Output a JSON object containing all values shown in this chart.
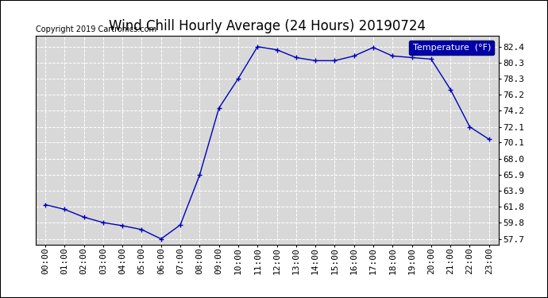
{
  "title": "Wind Chill Hourly Average (24 Hours) 20190724",
  "copyright": "Copyright 2019 Cartronics.com",
  "legend_label": "Temperature  (°F)",
  "x_labels": [
    "00:00",
    "01:00",
    "02:00",
    "03:00",
    "04:00",
    "05:00",
    "06:00",
    "07:00",
    "08:00",
    "09:00",
    "10:00",
    "11:00",
    "12:00",
    "13:00",
    "14:00",
    "15:00",
    "16:00",
    "17:00",
    "18:00",
    "19:00",
    "20:00",
    "21:00",
    "22:00",
    "23:00"
  ],
  "y_values": [
    62.1,
    61.5,
    60.5,
    59.8,
    59.4,
    58.9,
    57.7,
    59.5,
    65.9,
    74.5,
    78.3,
    82.4,
    82.0,
    81.0,
    80.6,
    80.6,
    81.2,
    82.3,
    81.2,
    81.0,
    80.8,
    76.9,
    72.1,
    70.5
  ],
  "line_color": "#0000bb",
  "marker": "+",
  "marker_size": 5,
  "ylim": [
    57.0,
    83.8
  ],
  "yticks": [
    57.7,
    59.8,
    61.8,
    63.9,
    65.9,
    68.0,
    70.1,
    72.1,
    74.2,
    76.2,
    78.3,
    80.3,
    82.4
  ],
  "bg_color": "#ffffff",
  "plot_bg_color": "#d8d8d8",
  "grid_color": "#ffffff",
  "title_fontsize": 12,
  "copyright_fontsize": 7,
  "tick_fontsize": 8,
  "legend_bg": "#0000aa",
  "legend_fg": "#ffffff",
  "legend_fontsize": 8,
  "border_color": "#000000"
}
